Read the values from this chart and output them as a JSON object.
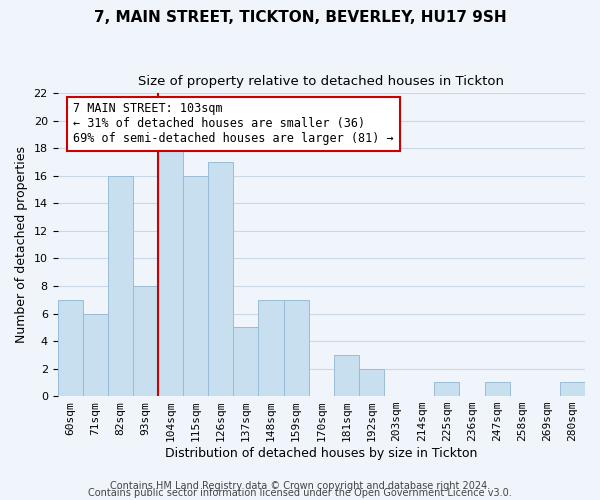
{
  "title": "7, MAIN STREET, TICKTON, BEVERLEY, HU17 9SH",
  "subtitle": "Size of property relative to detached houses in Tickton",
  "xlabel": "Distribution of detached houses by size in Tickton",
  "ylabel": "Number of detached properties",
  "bin_labels": [
    "60sqm",
    "71sqm",
    "82sqm",
    "93sqm",
    "104sqm",
    "115sqm",
    "126sqm",
    "137sqm",
    "148sqm",
    "159sqm",
    "170sqm",
    "181sqm",
    "192sqm",
    "203sqm",
    "214sqm",
    "225sqm",
    "236sqm",
    "247sqm",
    "258sqm",
    "269sqm",
    "280sqm"
  ],
  "bar_values": [
    7,
    6,
    16,
    8,
    18,
    16,
    17,
    5,
    7,
    7,
    0,
    3,
    2,
    0,
    0,
    1,
    0,
    1,
    0,
    0,
    1
  ],
  "bar_color": "#c8dff0",
  "bar_edge_color": "#9bbcd8",
  "property_line_idx": 4,
  "annotation_text_line1": "7 MAIN STREET: 103sqm",
  "annotation_text_line2": "← 31% of detached houses are smaller (36)",
  "annotation_text_line3": "69% of semi-detached houses are larger (81) →",
  "vline_color": "#cc0000",
  "annotation_box_edge_color": "#cc0000",
  "ylim": [
    0,
    22
  ],
  "yticks": [
    0,
    2,
    4,
    6,
    8,
    10,
    12,
    14,
    16,
    18,
    20,
    22
  ],
  "footer_line1": "Contains HM Land Registry data © Crown copyright and database right 2024.",
  "footer_line2": "Contains public sector information licensed under the Open Government Licence v3.0.",
  "background_color": "#f0f5fb",
  "grid_color": "#c8d8e8",
  "title_fontsize": 11,
  "subtitle_fontsize": 9.5,
  "axis_label_fontsize": 9,
  "tick_fontsize": 8,
  "annotation_fontsize": 8.5,
  "footer_fontsize": 7
}
